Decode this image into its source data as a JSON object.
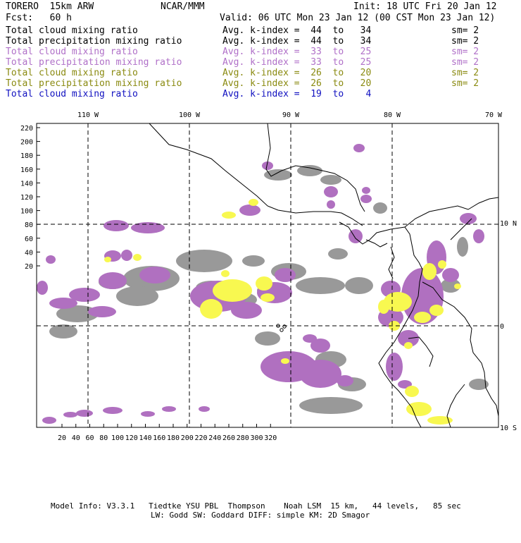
{
  "header": {
    "model": "TORERO  15km ARW",
    "org": "NCAR/MMM",
    "init": "Init: 18 UTC Fri 20 Jan 12",
    "fcst": "Fcst:   60 h",
    "valid": "Valid: 06 UTC Mon 23 Jan 12 (00 CST Mon 23 Jan 12)"
  },
  "fields": [
    {
      "name": "Total cloud mixing ratio",
      "kindex": "Avg. k-index =  44  to   34",
      "sm": "sm= 2",
      "color": "#000000"
    },
    {
      "name": "Total precipitation mixing ratio",
      "kindex": "Avg. k-index =  44  to   34",
      "sm": "sm= 2",
      "color": "#000000"
    },
    {
      "name": "Total cloud mixing ratio",
      "kindex": "Avg. k-index =  33  to   25",
      "sm": "sm= 2",
      "color": "#b070c8"
    },
    {
      "name": "Total precipitation mixing ratio",
      "kindex": "Avg. k-index =  33  to   25",
      "sm": "sm= 2",
      "color": "#b070c8"
    },
    {
      "name": "Total cloud mixing ratio",
      "kindex": "Avg. k-index =  26  to   20",
      "sm": "sm= 2",
      "color": "#8a8a10"
    },
    {
      "name": "Total precipitation mixing ratio",
      "kindex": "Avg. k-index =  26  to   20",
      "sm": "sm= 2",
      "color": "#8a8a10"
    },
    {
      "name": "Total cloud mixing ratio",
      "kindex": "Avg. k-index =  19  to    4",
      "sm": "",
      "color": "#1010c0"
    }
  ],
  "map": {
    "lon_labels": [
      "110 W",
      "100 W",
      "90 W",
      "80 W",
      "70 W"
    ],
    "lat_labels": [
      "10 N",
      "0",
      "10 S"
    ],
    "y_ticks": [
      "220",
      "200",
      "180",
      "160",
      "140",
      "120",
      "100",
      "80",
      "60",
      "40",
      "20"
    ],
    "x_ticks": [
      "20",
      "40",
      "60",
      "80",
      "100",
      "120",
      "140",
      "160",
      "180",
      "200",
      "220",
      "240",
      "260",
      "280",
      "300",
      "320"
    ],
    "colors": {
      "gray": "#999999",
      "violet": "#b070c0",
      "yellow": "#f8f850",
      "coast": "#000000"
    }
  },
  "footer": {
    "line1": "Model Info: V3.3.1   Tiedtke YSU PBL  Thompson    Noah LSM  15 km,   44 levels,   85 sec",
    "line2": "LW: Godd SW: Goddard DIFF: simple KM: 2D Smagor"
  }
}
